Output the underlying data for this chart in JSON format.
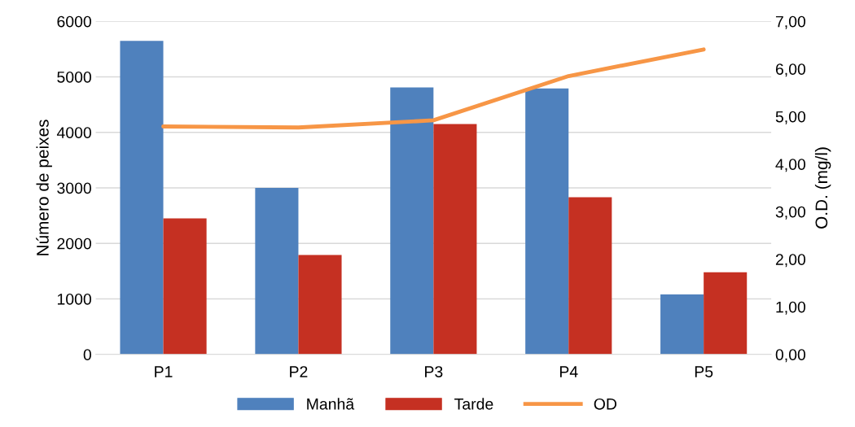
{
  "chart_data": {
    "type": "bar",
    "categories": [
      "P1",
      "P2",
      "P3",
      "P4",
      "P5"
    ],
    "ylabel": "Número de peixes",
    "y2label": "O.D. (mg/l)",
    "series": [
      {
        "name": "Manhã",
        "color": "#4f81bd",
        "values": [
          5650,
          3000,
          4810,
          4790,
          1080
        ]
      },
      {
        "name": "Tarde",
        "color": "#c53022",
        "values": [
          2450,
          1790,
          4150,
          2830,
          1480
        ]
      },
      {
        "name": "OD",
        "type": "line",
        "axis": "y2",
        "color": "#f79646",
        "values": [
          4.79,
          4.77,
          4.92,
          5.85,
          6.41
        ]
      }
    ],
    "ylim": [
      0,
      6000
    ],
    "yticks": [
      0,
      1000,
      2000,
      3000,
      4000,
      5000,
      6000
    ],
    "y2lim": [
      0,
      7
    ],
    "y2ticks": [
      {
        "value": 0,
        "label": "0,00"
      },
      {
        "value": 1,
        "label": "1,00"
      },
      {
        "value": 2,
        "label": "2,00"
      },
      {
        "value": 3,
        "label": "3,00"
      },
      {
        "value": 4,
        "label": "4,00"
      },
      {
        "value": 5,
        "label": "5,00"
      },
      {
        "value": 6,
        "label": "6,00"
      },
      {
        "value": 7,
        "label": "7,00"
      }
    ],
    "grid": "y",
    "legend": "bottom"
  }
}
